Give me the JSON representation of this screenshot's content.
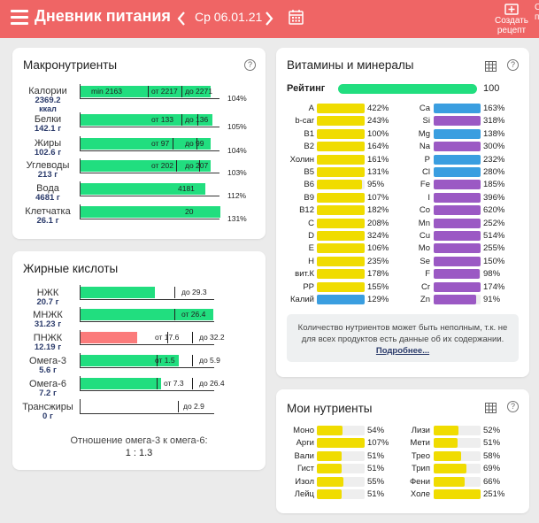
{
  "header": {
    "title": "Дневник питания",
    "date": "Ср 06.01.21",
    "create_recipe_line1": "Создать",
    "create_recipe_line2": "рецепт",
    "cut_button": "С п",
    "bg_color": "#ef6565"
  },
  "macros": {
    "title": "Макронутриенты",
    "help": "?",
    "rows": [
      {
        "name": "Калории",
        "amount": "2369.2",
        "unit": "ккал",
        "fill": 0.93,
        "texts": [
          "min 2163",
          "от 2217",
          "до 2271"
        ],
        "percent": "104%"
      },
      {
        "name": "Белки",
        "amount": "142.1 г",
        "unit": "",
        "fill": 0.94,
        "texts": [
          "от 133",
          "до 136"
        ],
        "percent": "105%"
      },
      {
        "name": "Жиры",
        "amount": "102.6 г",
        "unit": "",
        "fill": 0.93,
        "texts": [
          "от 97",
          "до 99"
        ],
        "percent": "104%"
      },
      {
        "name": "Углеводы",
        "amount": "213 г",
        "unit": "",
        "fill": 0.93,
        "texts": [
          "от 202",
          "до 207"
        ],
        "percent": "103%"
      },
      {
        "name": "Вода",
        "amount": "4681 г",
        "unit": "",
        "fill": 0.89,
        "texts": [
          "4181"
        ],
        "percent": "112%"
      },
      {
        "name": "Клетчатка",
        "amount": "26.1 г",
        "unit": "",
        "fill": 1.0,
        "texts": [
          "20"
        ],
        "percent": "131%"
      }
    ]
  },
  "fatty": {
    "title": "Жирные кислоты",
    "help": "?",
    "rows": [
      {
        "name": "НЖК",
        "amount": "20.7 г",
        "fill": 0.55,
        "color": "#21de7f",
        "texts": [
          "до 29.3"
        ]
      },
      {
        "name": "МНЖК",
        "amount": "31.23 г",
        "fill": 0.99,
        "color": "#21de7f",
        "texts": [
          "от 26.4"
        ]
      },
      {
        "name": "ПНЖК",
        "amount": "12.19 г",
        "fill": 0.42,
        "color": "#fb7b7b",
        "texts": [
          "от 17.6",
          "до 32.2"
        ]
      },
      {
        "name": "Омега-3",
        "amount": "5.6 г",
        "fill": 0.73,
        "color": "#21de7f",
        "texts": [
          "от 1.5",
          "до 5.9"
        ]
      },
      {
        "name": "Омега-6",
        "amount": "7.2 г",
        "fill": 0.6,
        "color": "#21de7f",
        "texts": [
          "от 7.3",
          "до 26.4"
        ]
      },
      {
        "name": "Трансжиры",
        "amount": "0 г",
        "fill": 0.0,
        "color": "#21de7f",
        "texts": [
          "до 2.9"
        ]
      }
    ],
    "ratio_label": "Отношение омега-3 к омега-6:",
    "ratio_value": "1 : 1.3"
  },
  "vitamins": {
    "title": "Витамины и минералы",
    "help": "?",
    "rating_label": "Рейтинг",
    "rating_value": "100",
    "colors": {
      "vitamin": "#f0dc00",
      "mineral_blue": "#3a9ee0",
      "mineral_purple": "#9b59c4"
    },
    "left": [
      {
        "name": "A",
        "percent": "422%",
        "fill": 1.0,
        "color": "vitamin"
      },
      {
        "name": "b-car",
        "percent": "243%",
        "fill": 1.0,
        "color": "vitamin"
      },
      {
        "name": "B1",
        "percent": "100%",
        "fill": 1.0,
        "color": "vitamin"
      },
      {
        "name": "B2",
        "percent": "164%",
        "fill": 1.0,
        "color": "vitamin"
      },
      {
        "name": "Холин",
        "percent": "161%",
        "fill": 1.0,
        "color": "vitamin"
      },
      {
        "name": "B5",
        "percent": "131%",
        "fill": 1.0,
        "color": "vitamin"
      },
      {
        "name": "B6",
        "percent": "95%",
        "fill": 0.95,
        "color": "vitamin"
      },
      {
        "name": "B9",
        "percent": "107%",
        "fill": 1.0,
        "color": "vitamin"
      },
      {
        "name": "B12",
        "percent": "182%",
        "fill": 1.0,
        "color": "vitamin"
      },
      {
        "name": "C",
        "percent": "208%",
        "fill": 1.0,
        "color": "vitamin"
      },
      {
        "name": "D",
        "percent": "324%",
        "fill": 1.0,
        "color": "vitamin"
      },
      {
        "name": "E",
        "percent": "106%",
        "fill": 1.0,
        "color": "vitamin"
      },
      {
        "name": "H",
        "percent": "235%",
        "fill": 1.0,
        "color": "vitamin"
      },
      {
        "name": "вит.К",
        "percent": "178%",
        "fill": 1.0,
        "color": "vitamin"
      },
      {
        "name": "PP",
        "percent": "155%",
        "fill": 1.0,
        "color": "vitamin"
      },
      {
        "name": "Калий",
        "percent": "129%",
        "fill": 1.0,
        "color": "mineral_blue"
      }
    ],
    "right": [
      {
        "name": "Ca",
        "percent": "163%",
        "fill": 1.0,
        "color": "mineral_blue"
      },
      {
        "name": "Si",
        "percent": "318%",
        "fill": 1.0,
        "color": "mineral_purple"
      },
      {
        "name": "Mg",
        "percent": "138%",
        "fill": 1.0,
        "color": "mineral_blue"
      },
      {
        "name": "Na",
        "percent": "300%",
        "fill": 1.0,
        "color": "mineral_purple"
      },
      {
        "name": "P",
        "percent": "232%",
        "fill": 1.0,
        "color": "mineral_blue"
      },
      {
        "name": "Cl",
        "percent": "280%",
        "fill": 1.0,
        "color": "mineral_blue"
      },
      {
        "name": "Fe",
        "percent": "185%",
        "fill": 1.0,
        "color": "mineral_purple"
      },
      {
        "name": "I",
        "percent": "396%",
        "fill": 1.0,
        "color": "mineral_purple"
      },
      {
        "name": "Co",
        "percent": "620%",
        "fill": 1.0,
        "color": "mineral_purple"
      },
      {
        "name": "Mn",
        "percent": "252%",
        "fill": 1.0,
        "color": "mineral_purple"
      },
      {
        "name": "Cu",
        "percent": "514%",
        "fill": 1.0,
        "color": "mineral_purple"
      },
      {
        "name": "Mo",
        "percent": "255%",
        "fill": 1.0,
        "color": "mineral_purple"
      },
      {
        "name": "Se",
        "percent": "150%",
        "fill": 1.0,
        "color": "mineral_purple"
      },
      {
        "name": "F",
        "percent": "98%",
        "fill": 0.98,
        "color": "mineral_purple"
      },
      {
        "name": "Cr",
        "percent": "174%",
        "fill": 1.0,
        "color": "mineral_purple"
      },
      {
        "name": "Zn",
        "percent": "91%",
        "fill": 0.91,
        "color": "mineral_purple"
      }
    ],
    "note": "Количество нутриентов может быть неполным, т.к. не для всех продуктов есть данные об их содержании.",
    "note_link": "Подробнее..."
  },
  "my_nutrients": {
    "title": "Мои нутриенты",
    "help": "?",
    "left": [
      {
        "name": "Моно",
        "percent": "54%",
        "fill": 0.54
      },
      {
        "name": "Арги",
        "percent": "107%",
        "fill": 1.0
      },
      {
        "name": "Вали",
        "percent": "51%",
        "fill": 0.51
      },
      {
        "name": "Гист",
        "percent": "51%",
        "fill": 0.51
      },
      {
        "name": "Изол",
        "percent": "55%",
        "fill": 0.55
      },
      {
        "name": "Лейц",
        "percent": "51%",
        "fill": 0.51
      }
    ],
    "right": [
      {
        "name": "Лизи",
        "percent": "52%",
        "fill": 0.52
      },
      {
        "name": "Мети",
        "percent": "51%",
        "fill": 0.51
      },
      {
        "name": "Трео",
        "percent": "58%",
        "fill": 0.58
      },
      {
        "name": "Трип",
        "percent": "69%",
        "fill": 0.69
      },
      {
        "name": "Фени",
        "percent": "66%",
        "fill": 0.66
      },
      {
        "name": "Холе",
        "percent": "251%",
        "fill": 1.0
      }
    ]
  }
}
